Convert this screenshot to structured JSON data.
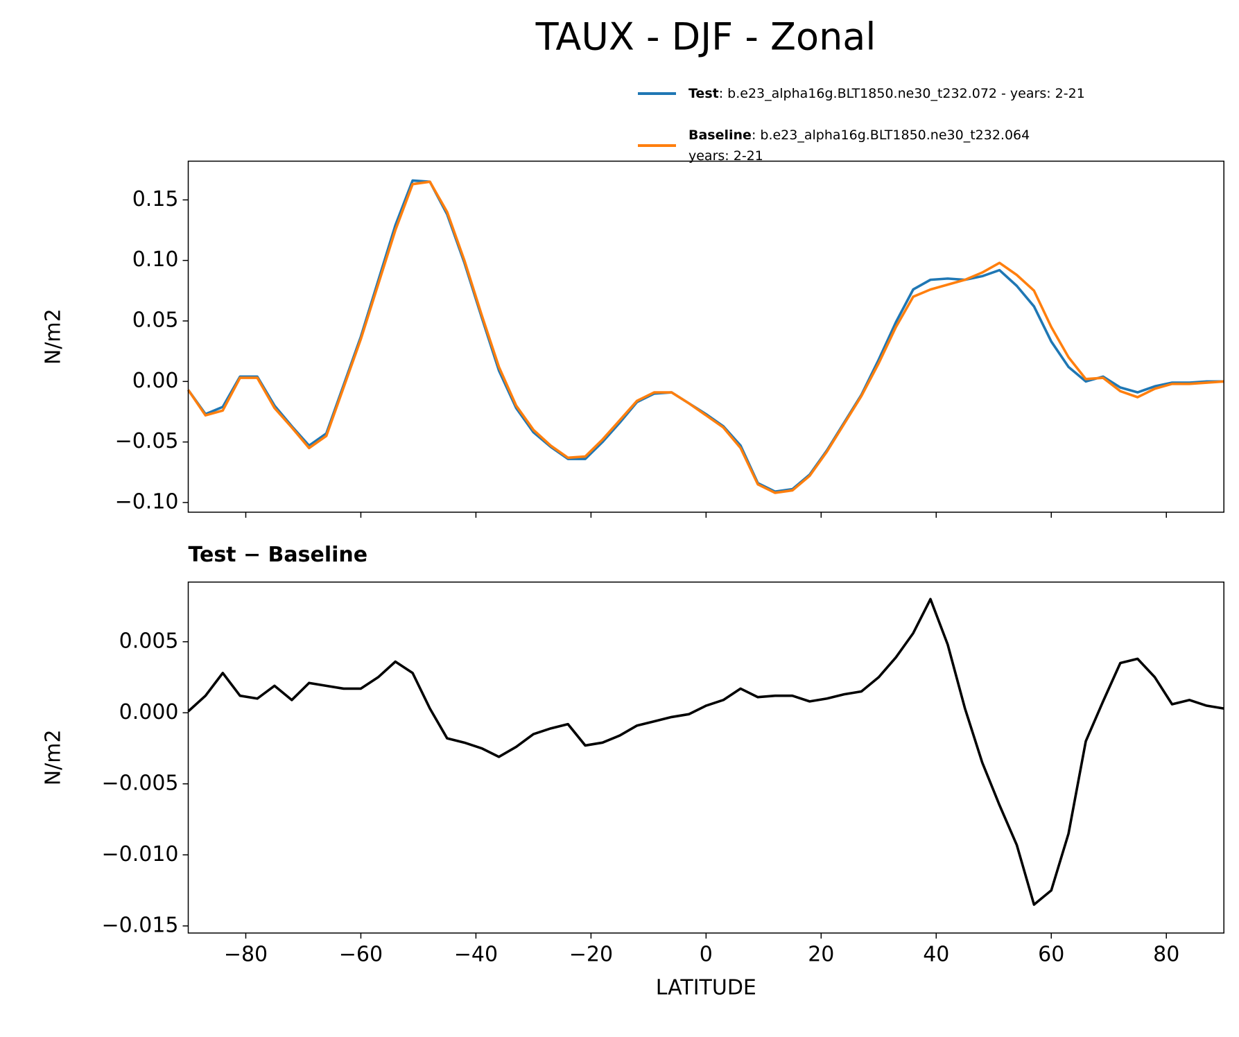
{
  "title": "TAUX - DJF - Zonal",
  "chart_data": [
    {
      "type": "line",
      "ylabel": "N/m2",
      "x": [
        -90,
        -87,
        -84,
        -81,
        -78,
        -75,
        -72,
        -69,
        -66,
        -63,
        -60,
        -57,
        -54,
        -51,
        -48,
        -45,
        -42,
        -39,
        -36,
        -33,
        -30,
        -27,
        -24,
        -21,
        -18,
        -15,
        -12,
        -9,
        -6,
        -3,
        0,
        3,
        6,
        9,
        12,
        15,
        18,
        21,
        24,
        27,
        30,
        33,
        36,
        39,
        42,
        45,
        48,
        51,
        54,
        57,
        60,
        63,
        66,
        69,
        72,
        75,
        78,
        81,
        84,
        87,
        90
      ],
      "series": [
        {
          "name": "Test",
          "label_lines": [
            ": b.e23_alpha16g.BLT1850.ne30_t232.072 - years: 2-21"
          ],
          "color": "#1f77b4",
          "values": [
            -0.007,
            -0.027,
            -0.021,
            0.004,
            0.004,
            -0.02,
            -0.037,
            -0.053,
            -0.043,
            -0.003,
            0.037,
            0.083,
            0.129,
            0.166,
            0.165,
            0.138,
            0.098,
            0.053,
            0.009,
            -0.022,
            -0.042,
            -0.054,
            -0.064,
            -0.064,
            -0.05,
            -0.034,
            -0.017,
            -0.01,
            -0.009,
            -0.018,
            -0.027,
            -0.037,
            -0.053,
            -0.084,
            -0.091,
            -0.089,
            -0.077,
            -0.057,
            -0.034,
            -0.011,
            0.018,
            0.049,
            0.076,
            0.084,
            0.085,
            0.084,
            0.087,
            0.092,
            0.079,
            0.062,
            0.033,
            0.012,
            0.0,
            0.004,
            -0.005,
            -0.009,
            -0.004,
            -0.001,
            -0.001,
            0.0,
            0.0
          ]
        },
        {
          "name": "Baseline",
          "label_lines": [
            ": b.e23_alpha16g.BLT1850.ne30_t232.064",
            "years: 2-21"
          ],
          "color": "#ff7f0e",
          "values": [
            -0.007,
            -0.028,
            -0.024,
            0.003,
            0.003,
            -0.022,
            -0.038,
            -0.055,
            -0.045,
            -0.005,
            0.035,
            0.08,
            0.125,
            0.163,
            0.165,
            0.14,
            0.1,
            0.055,
            0.012,
            -0.02,
            -0.04,
            -0.053,
            -0.063,
            -0.062,
            -0.048,
            -0.032,
            -0.016,
            -0.009,
            -0.009,
            -0.018,
            -0.028,
            -0.038,
            -0.055,
            -0.085,
            -0.092,
            -0.09,
            -0.078,
            -0.058,
            -0.035,
            -0.012,
            0.015,
            0.045,
            0.07,
            0.076,
            0.08,
            0.084,
            0.09,
            0.098,
            0.088,
            0.075,
            0.045,
            0.02,
            0.002,
            0.003,
            -0.008,
            -0.013,
            -0.006,
            -0.002,
            -0.002,
            -0.001,
            0.0
          ]
        }
      ],
      "xlim": [
        -90,
        90
      ],
      "ylim": [
        -0.108,
        0.182
      ],
      "xticks": [
        {
          "value": -80,
          "label": "−80"
        },
        {
          "value": -60,
          "label": "−60"
        },
        {
          "value": -40,
          "label": "−40"
        },
        {
          "value": -20,
          "label": "−20"
        },
        0,
        20,
        40,
        60,
        80
      ],
      "show_xtick_labels": false,
      "yticks": [
        {
          "value": -0.1,
          "label": "−0.10"
        },
        {
          "value": -0.05,
          "label": "−0.05"
        },
        {
          "value": 0,
          "label": "0.00"
        },
        {
          "value": 0.05,
          "label": "0.05"
        },
        {
          "value": 0.1,
          "label": "0.10"
        },
        0.15
      ],
      "legend": "upper right"
    },
    {
      "type": "line",
      "title": "Test − Baseline",
      "xlabel": "LATITUDE",
      "ylabel": "N/m2",
      "x": [
        -90,
        -87,
        -84,
        -81,
        -78,
        -75,
        -72,
        -69,
        -66,
        -63,
        -60,
        -57,
        -54,
        -51,
        -48,
        -45,
        -42,
        -39,
        -36,
        -33,
        -30,
        -27,
        -24,
        -21,
        -18,
        -15,
        -12,
        -9,
        -6,
        -3,
        0,
        3,
        6,
        9,
        12,
        15,
        18,
        21,
        24,
        27,
        30,
        33,
        36,
        39,
        42,
        45,
        48,
        51,
        54,
        57,
        60,
        63,
        66,
        69,
        72,
        75,
        78,
        81,
        84,
        87,
        90
      ],
      "series": [
        {
          "color": "#000000",
          "values": [
            0.0001,
            0.0012,
            0.0028,
            0.0012,
            0.001,
            0.0019,
            0.0009,
            0.0021,
            0.0019,
            0.0017,
            0.0017,
            0.0025,
            0.0036,
            0.0028,
            0.0003,
            -0.0018,
            -0.0021,
            -0.0025,
            -0.0031,
            -0.0024,
            -0.0015,
            -0.0011,
            -0.0008,
            -0.0023,
            -0.0021,
            -0.0016,
            -0.0009,
            -0.0006,
            -0.0003,
            -0.0001,
            0.0005,
            0.0009,
            0.0017,
            0.0011,
            0.0012,
            0.0012,
            0.0008,
            0.001,
            0.0013,
            0.0015,
            0.0025,
            0.0039,
            0.0056,
            0.008,
            0.0048,
            0.0003,
            -0.0035,
            -0.0065,
            -0.0093,
            -0.0135,
            -0.0125,
            -0.0085,
            -0.002,
            0.0008,
            0.0035,
            0.0038,
            0.0025,
            0.0006,
            0.0009,
            0.0005,
            0.0003
          ]
        }
      ],
      "xlim": [
        -90,
        90
      ],
      "ylim": [
        -0.0155,
        0.0092
      ],
      "xticks": [
        {
          "value": -80,
          "label": "−80"
        },
        {
          "value": -60,
          "label": "−60"
        },
        {
          "value": -40,
          "label": "−40"
        },
        {
          "value": -20,
          "label": "−20"
        },
        0,
        20,
        40,
        60,
        80
      ],
      "show_xtick_labels": true,
      "yticks": [
        {
          "value": -0.015,
          "label": "−0.015"
        },
        {
          "value": -0.01,
          "label": "−0.010"
        },
        {
          "value": -0.005,
          "label": "−0.005"
        },
        {
          "value": 0,
          "label": "0.000"
        },
        0.005
      ]
    }
  ]
}
